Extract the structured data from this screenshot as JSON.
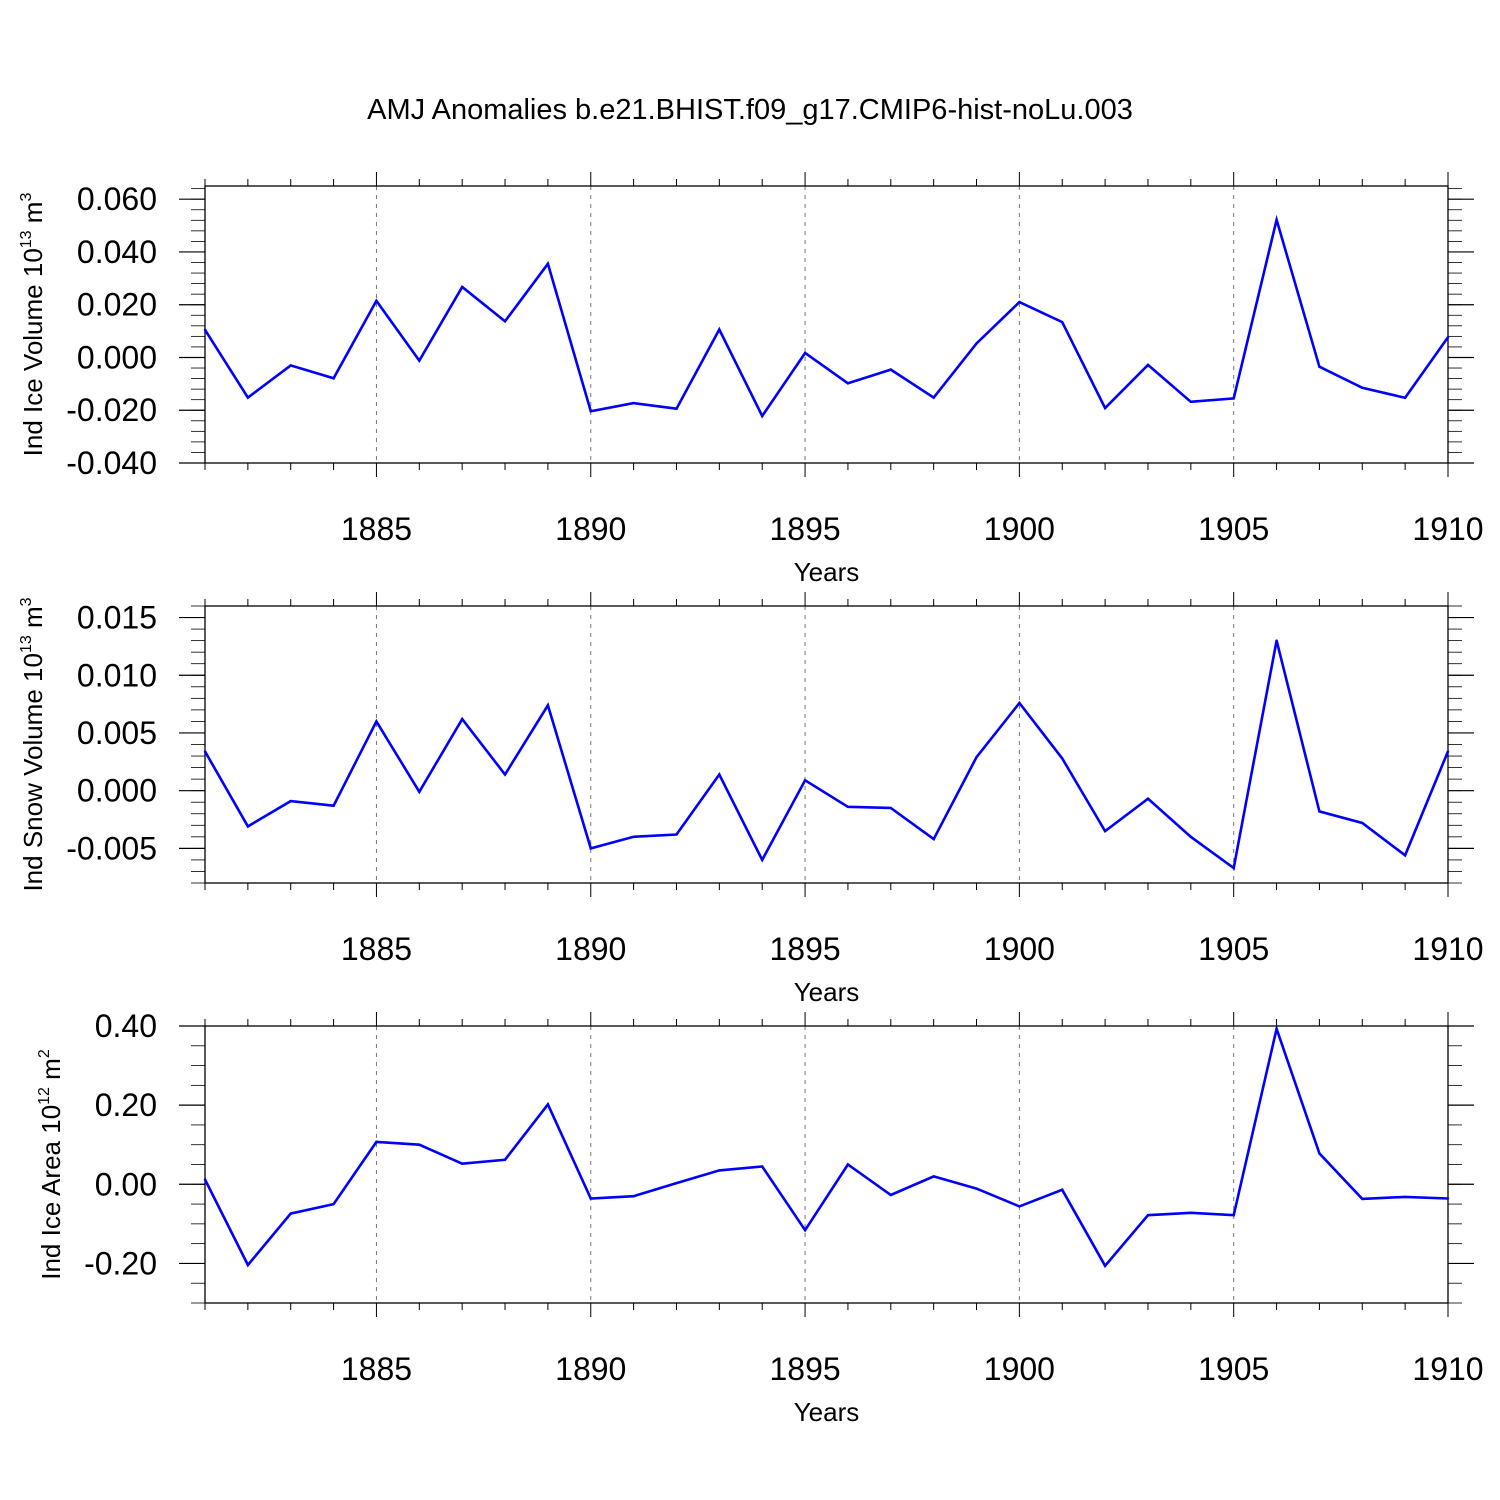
{
  "title": "AMJ Anomalies b.e21.BHIST.f09_g17.CMIP6-hist-noLu.003",
  "colors": {
    "line": "#0000ff",
    "axis": "#000000",
    "grid": "#777777"
  },
  "chart_data": [
    {
      "type": "line",
      "ylabel": {
        "text": "Ind Ice Volume 10",
        "exp": "13",
        "unit": "m",
        "unit_exp": "3"
      },
      "xlabel": "Years",
      "xlim": [
        1881,
        1910
      ],
      "ylim": [
        -0.04,
        0.065
      ],
      "yticks": [
        -0.04,
        -0.02,
        0.0,
        0.02,
        0.04,
        0.06
      ],
      "ytick_labels": [
        "-0.040",
        "-0.020",
        "0.000",
        "0.020",
        "0.040",
        "0.060"
      ],
      "yminor_step": 0.004,
      "xticks": [
        1885,
        1890,
        1895,
        1900,
        1905,
        1910
      ],
      "xtick_labels": [
        "1885",
        "1890",
        "1895",
        "1900",
        "1905",
        "1910"
      ],
      "x": [
        1881,
        1882,
        1883,
        1884,
        1885,
        1886,
        1887,
        1888,
        1889,
        1890,
        1891,
        1892,
        1893,
        1894,
        1895,
        1896,
        1897,
        1898,
        1899,
        1900,
        1901,
        1902,
        1903,
        1904,
        1905,
        1906,
        1907,
        1908,
        1909,
        1910
      ],
      "series": [
        {
          "name": "Ind Ice Volume",
          "values": [
            0.0105,
            -0.0152,
            -0.003,
            -0.0079,
            0.0215,
            -0.0012,
            0.0267,
            0.0137,
            0.0355,
            -0.0204,
            -0.0173,
            -0.0194,
            0.0106,
            -0.0222,
            0.0017,
            -0.0098,
            -0.0046,
            -0.0152,
            0.0053,
            0.021,
            0.0134,
            -0.0192,
            -0.0028,
            -0.0168,
            -0.0155,
            0.0522,
            -0.0035,
            -0.0115,
            -0.0153,
            0.0077
          ]
        }
      ]
    },
    {
      "type": "line",
      "ylabel": {
        "text": "Ind Snow Volume 10",
        "exp": "13",
        "unit": "m",
        "unit_exp": "3"
      },
      "xlabel": "Years",
      "xlim": [
        1881,
        1910
      ],
      "ylim": [
        -0.008,
        0.016
      ],
      "yticks": [
        -0.005,
        0.0,
        0.005,
        0.01,
        0.015
      ],
      "ytick_labels": [
        "-0.005",
        "0.000",
        "0.005",
        "0.010",
        "0.015"
      ],
      "yminor_step": 0.001,
      "xticks": [
        1885,
        1890,
        1895,
        1900,
        1905,
        1910
      ],
      "xtick_labels": [
        "1885",
        "1890",
        "1895",
        "1900",
        "1905",
        "1910"
      ],
      "x": [
        1881,
        1882,
        1883,
        1884,
        1885,
        1886,
        1887,
        1888,
        1889,
        1890,
        1891,
        1892,
        1893,
        1894,
        1895,
        1896,
        1897,
        1898,
        1899,
        1900,
        1901,
        1902,
        1903,
        1904,
        1905,
        1906,
        1907,
        1908,
        1909,
        1910
      ],
      "series": [
        {
          "name": "Ind Snow Volume",
          "values": [
            0.0034,
            -0.0031,
            -0.0009,
            -0.0013,
            0.006,
            -0.0001,
            0.0062,
            0.0014,
            0.0074,
            -0.005,
            -0.004,
            -0.0038,
            0.0014,
            -0.006,
            0.0009,
            -0.0014,
            -0.0015,
            -0.0042,
            0.0029,
            0.0076,
            0.0028,
            -0.0035,
            -0.0007,
            -0.004,
            -0.0067,
            0.013,
            -0.0018,
            -0.0028,
            -0.0056,
            0.0034
          ]
        }
      ]
    },
    {
      "type": "line",
      "ylabel": {
        "text": "Ind Ice Area 10",
        "exp": "12",
        "unit": "m",
        "unit_exp": "2"
      },
      "xlabel": "Years",
      "xlim": [
        1881,
        1910
      ],
      "ylim": [
        -0.3,
        0.4
      ],
      "yticks": [
        -0.2,
        0.0,
        0.2,
        0.4
      ],
      "ytick_labels": [
        "-0.20",
        "0.00",
        "0.20",
        "0.40"
      ],
      "yminor_step": 0.05,
      "xticks": [
        1885,
        1890,
        1895,
        1900,
        1905,
        1910
      ],
      "xtick_labels": [
        "1885",
        "1890",
        "1895",
        "1900",
        "1905",
        "1910"
      ],
      "x": [
        1881,
        1882,
        1883,
        1884,
        1885,
        1886,
        1887,
        1888,
        1889,
        1890,
        1891,
        1892,
        1893,
        1894,
        1895,
        1896,
        1897,
        1898,
        1899,
        1900,
        1901,
        1902,
        1903,
        1904,
        1905,
        1906,
        1907,
        1908,
        1909,
        1910
      ],
      "series": [
        {
          "name": "Ind Ice Area",
          "values": [
            0.012,
            -0.204,
            -0.074,
            -0.05,
            0.107,
            0.1,
            0.052,
            0.062,
            0.202,
            -0.036,
            -0.03,
            0.003,
            0.035,
            0.045,
            -0.116,
            0.05,
            -0.027,
            0.02,
            -0.011,
            -0.056,
            -0.014,
            -0.206,
            -0.078,
            -0.072,
            -0.078,
            0.393,
            0.078,
            -0.037,
            -0.032,
            -0.036
          ]
        }
      ]
    }
  ]
}
